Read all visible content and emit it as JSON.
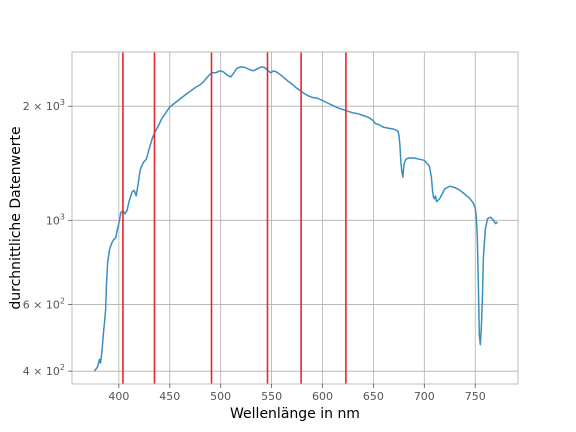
{
  "chart_data": {
    "type": "line",
    "title": "",
    "xlabel": "Wellenlänge in nm",
    "ylabel": "durchnittliche Datenwerte",
    "xlim": [
      354,
      792
    ],
    "ylim": [
      370,
      2780
    ],
    "yscale": "log",
    "grid": true,
    "x_ticks": [
      {
        "value": 400,
        "label": "400"
      },
      {
        "value": 450,
        "label": "450"
      },
      {
        "value": 500,
        "label": "500"
      },
      {
        "value": 550,
        "label": "550"
      },
      {
        "value": 600,
        "label": "600"
      },
      {
        "value": 650,
        "label": "650"
      },
      {
        "value": 700,
        "label": "700"
      },
      {
        "value": 750,
        "label": "750"
      }
    ],
    "y_ticks": [
      {
        "value": 400,
        "base": "4 × 10",
        "exp": "2"
      },
      {
        "value": 600,
        "base": "6 × 10",
        "exp": "2"
      },
      {
        "value": 1000,
        "base": "10",
        "exp": "3"
      },
      {
        "value": 2000,
        "base": "2 × 10",
        "exp": "3"
      }
    ],
    "vlines": {
      "color": "#e8262b",
      "x": [
        404,
        435,
        491,
        546,
        579,
        623
      ]
    },
    "series": [
      {
        "color": "#3a8fc0",
        "x": [
          376,
          379,
          381,
          382,
          383,
          384,
          385,
          386,
          387,
          388,
          389,
          390,
          391,
          393,
          395,
          397,
          398,
          400,
          402,
          404,
          406,
          408,
          410,
          413,
          415,
          417,
          419,
          421,
          424,
          427,
          430,
          433,
          436,
          439,
          442,
          446,
          450,
          455,
          460,
          465,
          470,
          475,
          480,
          483,
          486,
          489,
          492,
          495,
          498,
          500,
          503,
          506,
          510,
          513,
          516,
          520,
          524,
          528,
          532,
          536,
          540,
          543,
          546,
          549,
          552,
          555,
          558,
          562,
          566,
          570,
          574,
          578,
          582,
          586,
          590,
          595,
          600,
          605,
          610,
          615,
          620,
          625,
          630,
          635,
          640,
          645,
          650,
          652,
          655,
          660,
          665,
          670,
          674,
          675,
          676,
          677,
          678,
          679,
          680,
          682,
          685,
          690,
          695,
          700,
          705,
          707,
          708,
          709,
          710,
          711,
          712,
          715,
          718,
          720,
          725,
          730,
          735,
          740,
          745,
          748,
          750,
          751,
          752,
          753,
          754,
          755,
          756,
          757,
          758,
          760,
          762,
          765,
          768,
          770,
          772
        ],
        "y": [
          400,
          410,
          430,
          420,
          440,
          470,
          510,
          540,
          580,
          690,
          770,
          810,
          840,
          870,
          890,
          900,
          930,
          980,
          1050,
          1060,
          1040,
          1060,
          1120,
          1190,
          1200,
          1160,
          1250,
          1360,
          1420,
          1450,
          1550,
          1650,
          1720,
          1780,
          1850,
          1920,
          1990,
          2040,
          2090,
          2140,
          2190,
          2240,
          2280,
          2320,
          2370,
          2420,
          2450,
          2450,
          2470,
          2480,
          2460,
          2420,
          2390,
          2450,
          2520,
          2540,
          2530,
          2500,
          2480,
          2510,
          2540,
          2530,
          2490,
          2450,
          2480,
          2460,
          2430,
          2380,
          2330,
          2290,
          2240,
          2200,
          2160,
          2130,
          2110,
          2100,
          2070,
          2040,
          2010,
          1980,
          1960,
          1940,
          1920,
          1910,
          1890,
          1870,
          1830,
          1800,
          1790,
          1760,
          1750,
          1740,
          1720,
          1680,
          1580,
          1420,
          1340,
          1300,
          1410,
          1450,
          1460,
          1460,
          1450,
          1440,
          1390,
          1300,
          1200,
          1150,
          1140,
          1160,
          1120,
          1140,
          1180,
          1210,
          1230,
          1220,
          1200,
          1170,
          1140,
          1110,
          1080,
          1020,
          900,
          690,
          500,
          470,
          520,
          620,
          800,
          950,
          1010,
          1020,
          1000,
          980,
          990
        ]
      }
    ]
  }
}
